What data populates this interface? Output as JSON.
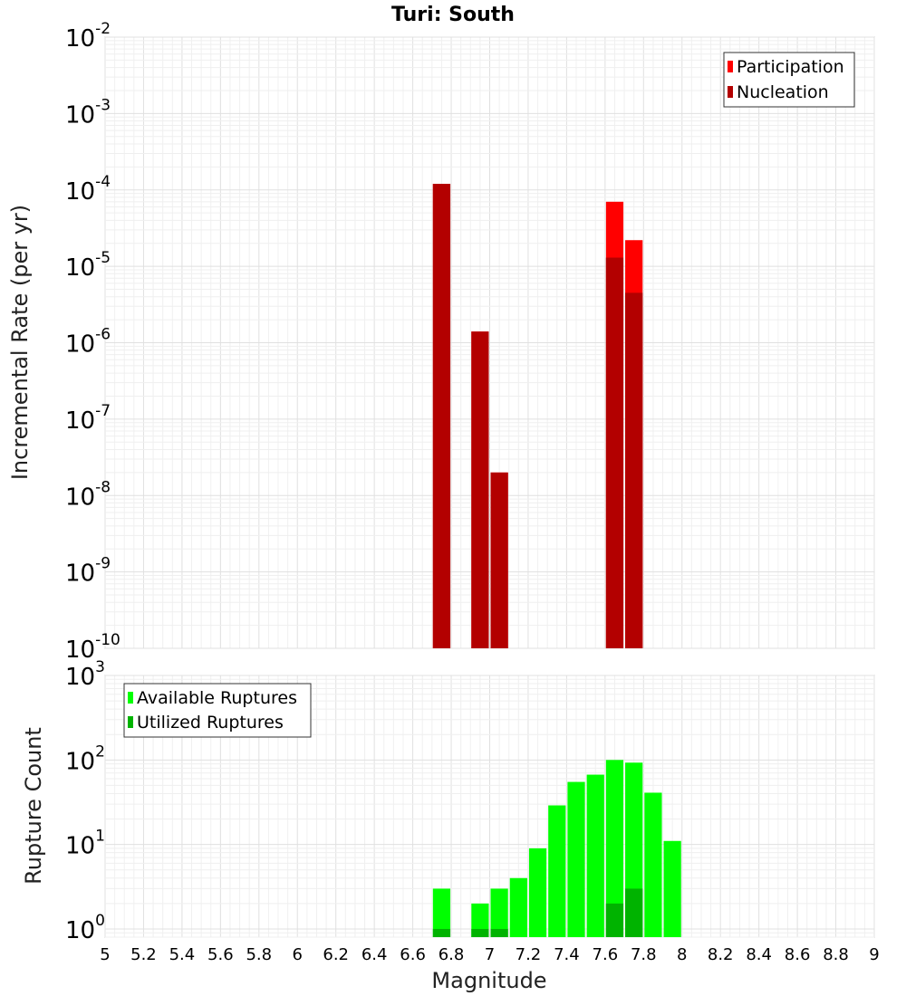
{
  "chart_data": [
    {
      "type": "bar",
      "title": "Turi: South",
      "xlabel": "",
      "ylabel": "Incremental Rate (per yr)",
      "y_scale": "log",
      "ylim": [
        1e-10,
        0.01
      ],
      "xlim": [
        5,
        9
      ],
      "y_ticks": [
        {
          "base": "10",
          "exp": "-10",
          "value": 1e-10
        },
        {
          "base": "10",
          "exp": "-9",
          "value": 1e-09
        },
        {
          "base": "10",
          "exp": "-8",
          "value": 1e-08
        },
        {
          "base": "10",
          "exp": "-7",
          "value": 1e-07
        },
        {
          "base": "10",
          "exp": "-6",
          "value": 1e-06
        },
        {
          "base": "10",
          "exp": "-5",
          "value": 1e-05
        },
        {
          "base": "10",
          "exp": "-4",
          "value": 0.0001
        },
        {
          "base": "10",
          "exp": "-3",
          "value": 0.001
        },
        {
          "base": "10",
          "exp": "-2",
          "value": 0.01
        }
      ],
      "grid": true,
      "legend_position": "top-right",
      "series": [
        {
          "name": "Participation",
          "color": "#ff0000",
          "x": [
            6.75,
            6.95,
            7.05,
            7.65,
            7.75
          ],
          "values": [
            0.00012,
            1.4e-06,
            2e-08,
            7e-05,
            2.2e-05
          ]
        },
        {
          "name": "Nucleation",
          "color": "#b30000",
          "x": [
            6.75,
            6.95,
            7.05,
            7.65,
            7.75
          ],
          "values": [
            0.00012,
            1.4e-06,
            2e-08,
            1.3e-05,
            4.5e-06
          ]
        }
      ]
    },
    {
      "type": "bar",
      "title": "",
      "xlabel": "Magnitude",
      "ylabel": "Rupture Count",
      "y_scale": "log",
      "ylim": [
        0.8,
        1000
      ],
      "xlim": [
        5,
        9
      ],
      "y_ticks": [
        {
          "base": "10",
          "exp": "0",
          "value": 1
        },
        {
          "base": "10",
          "exp": "1",
          "value": 10
        },
        {
          "base": "10",
          "exp": "2",
          "value": 100
        },
        {
          "base": "10",
          "exp": "3",
          "value": 1000
        }
      ],
      "x_ticks": [
        "5",
        "5.2",
        "5.4",
        "5.6",
        "5.8",
        "6",
        "6.2",
        "6.4",
        "6.6",
        "6.8",
        "7",
        "7.2",
        "7.4",
        "7.6",
        "7.8",
        "8",
        "8.2",
        "8.4",
        "8.6",
        "8.8",
        "9"
      ],
      "grid": true,
      "legend_position": "top-left",
      "series": [
        {
          "name": "Available Ruptures",
          "color": "#00ff00",
          "x": [
            6.75,
            6.95,
            7.05,
            7.15,
            7.25,
            7.35,
            7.45,
            7.55,
            7.65,
            7.75,
            7.85,
            7.95
          ],
          "values": [
            3,
            2,
            3,
            4,
            9,
            29,
            55,
            67,
            100,
            93,
            41,
            11
          ]
        },
        {
          "name": "Utilized Ruptures",
          "color": "#00b300",
          "x": [
            6.75,
            6.95,
            7.05,
            7.65,
            7.75
          ],
          "values": [
            1,
            1,
            1,
            2,
            3
          ]
        }
      ]
    }
  ]
}
